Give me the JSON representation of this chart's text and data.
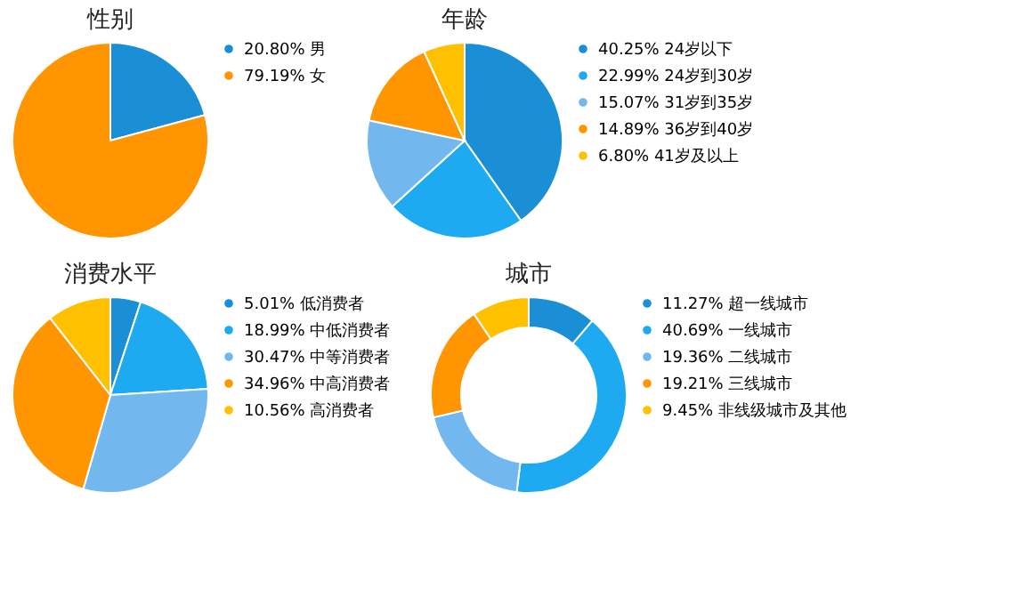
{
  "chart_data": [
    {
      "type": "pie",
      "title": "性别",
      "categories": [
        "男",
        "女"
      ],
      "values": [
        20.8,
        79.19
      ],
      "value_labels": [
        "20.80%",
        "79.19%"
      ],
      "colors": [
        "#1a8fd6",
        "#ff9500"
      ],
      "legend": "right"
    },
    {
      "type": "pie",
      "title": "年龄",
      "categories": [
        "24岁以下",
        "24岁到30岁",
        "31岁到35岁",
        "36岁到40岁",
        "41岁及以上"
      ],
      "values": [
        40.25,
        22.99,
        15.07,
        14.89,
        6.8
      ],
      "value_labels": [
        "40.25%",
        "22.99%",
        "15.07%",
        "14.89%",
        "6.80%"
      ],
      "colors": [
        "#1a8fd6",
        "#1eaaf1",
        "#72b8ee",
        "#ff9500",
        "#ffc000"
      ],
      "legend": "right"
    },
    {
      "type": "pie",
      "title": "消费水平",
      "categories": [
        "低消费者",
        "中低消费者",
        "中等消费者",
        "中高消费者",
        "高消费者"
      ],
      "values": [
        5.01,
        18.99,
        30.47,
        34.96,
        10.56
      ],
      "value_labels": [
        "5.01%",
        "18.99%",
        "30.47%",
        "34.96%",
        "10.56%"
      ],
      "colors": [
        "#1a8fd6",
        "#1eaaf1",
        "#72b8ee",
        "#ff9500",
        "#ffc000"
      ],
      "legend": "right"
    },
    {
      "type": "donut",
      "title": "城市",
      "categories": [
        "超一线城市",
        "一线城市",
        "二线城市",
        "三线城市",
        "非线级城市及其他"
      ],
      "values": [
        11.27,
        40.69,
        19.36,
        19.21,
        9.45
      ],
      "value_labels": [
        "11.27%",
        "40.69%",
        "19.36%",
        "19.21%",
        "9.45%"
      ],
      "colors": [
        "#1a8fd6",
        "#1eaaf1",
        "#72b8ee",
        "#ff9500",
        "#ffc000"
      ],
      "legend": "right"
    }
  ]
}
